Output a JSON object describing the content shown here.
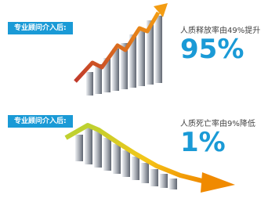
{
  "top": {
    "tag": "专业顾问介入后:",
    "caption": "人质释放率由49%提升",
    "value": "95%"
  },
  "bottom": {
    "tag": "专业顾问介入后:",
    "caption": "人质死亡率由9%降低",
    "value": "1%"
  }
}
